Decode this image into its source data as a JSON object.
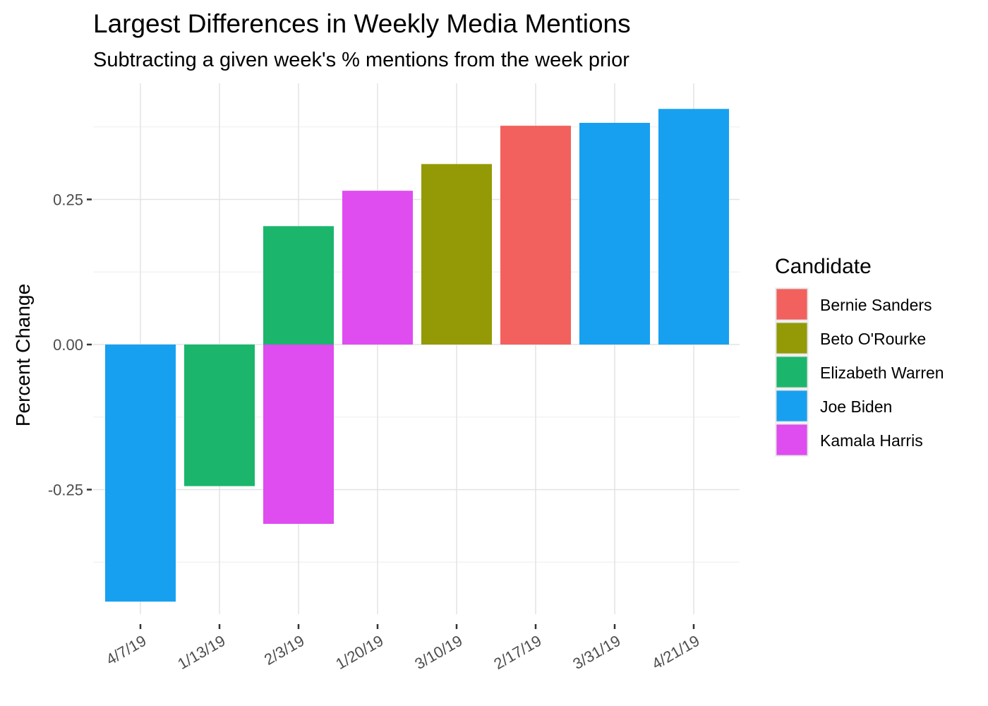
{
  "chart_data": {
    "type": "bar",
    "title": "Largest Differences in Weekly Media Mentions",
    "subtitle": "Subtracting a given week's % mentions from the week prior",
    "xlabel": "",
    "ylabel": "Percent Change",
    "categories": [
      "4/7/19",
      "1/13/19",
      "2/3/19",
      "1/20/19",
      "3/10/19",
      "2/17/19",
      "3/31/19",
      "4/21/19"
    ],
    "bars": [
      {
        "category": "4/7/19",
        "candidate": "Joe Biden",
        "value": -0.443
      },
      {
        "category": "1/13/19",
        "candidate": "Elizabeth Warren",
        "value": -0.244
      },
      {
        "category": "2/3/19",
        "candidate": "Elizabeth Warren",
        "value": 0.204
      },
      {
        "category": "2/3/19",
        "candidate": "Kamala Harris",
        "value": -0.309
      },
      {
        "category": "1/20/19",
        "candidate": "Kamala Harris",
        "value": 0.265
      },
      {
        "category": "3/10/19",
        "candidate": "Beto O'Rourke",
        "value": 0.311
      },
      {
        "category": "2/17/19",
        "candidate": "Bernie Sanders",
        "value": 0.377
      },
      {
        "category": "3/31/19",
        "candidate": "Joe Biden",
        "value": 0.382
      },
      {
        "category": "4/21/19",
        "candidate": "Joe Biden",
        "value": 0.406
      }
    ],
    "yticks": [
      -0.25,
      0.0,
      0.25
    ],
    "ytick_labels": [
      "-0.25",
      "0.00",
      "0.25"
    ],
    "ylim": [
      -0.47,
      0.45
    ],
    "grid": true,
    "legend": {
      "title": "Candidate",
      "position": "right",
      "entries": [
        {
          "name": "Bernie Sanders",
          "color": "#F2615D"
        },
        {
          "name": "Beto O'Rourke",
          "color": "#939A05"
        },
        {
          "name": "Elizabeth Warren",
          "color": "#1BB66C"
        },
        {
          "name": "Joe Biden",
          "color": "#17A0F0"
        },
        {
          "name": "Kamala Harris",
          "color": "#DF4CF0"
        }
      ]
    }
  }
}
